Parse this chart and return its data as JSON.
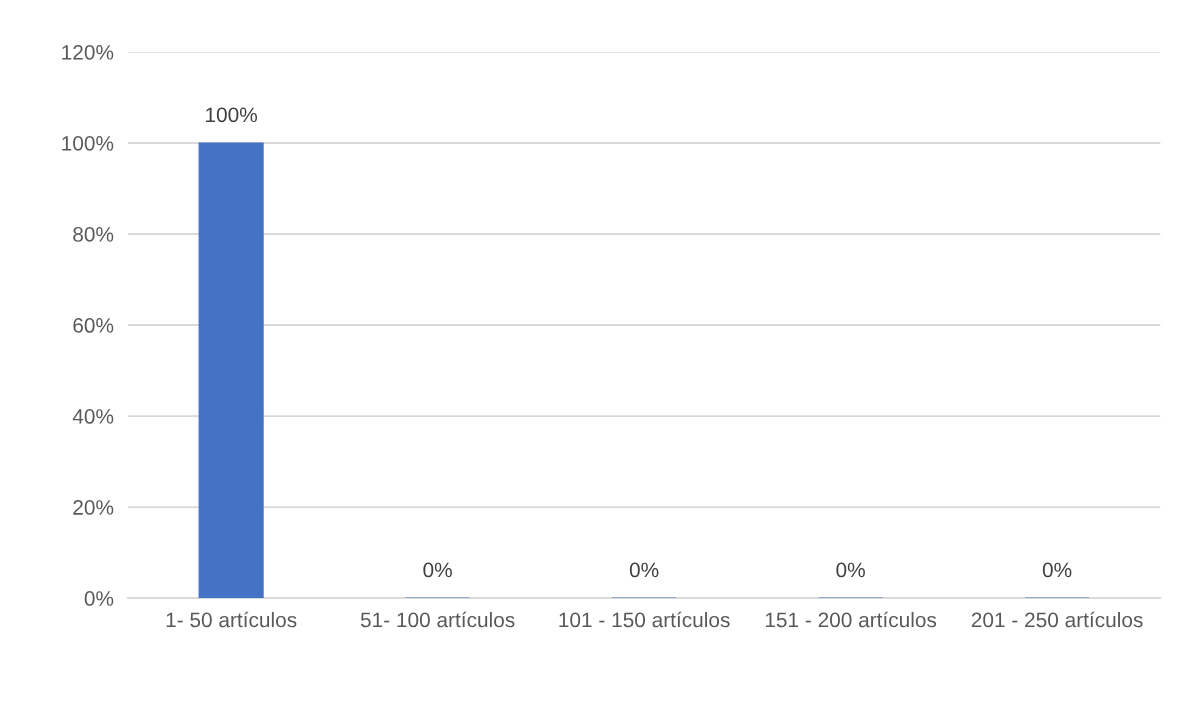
{
  "chart_data": {
    "type": "bar",
    "categories": [
      "1- 50 artículos",
      "51- 100 artículos",
      "101 - 150 artículos",
      "151 - 200 artículos",
      "201 - 250 artículos"
    ],
    "values": [
      100,
      0,
      0,
      0,
      0
    ],
    "value_labels": [
      "100%",
      "0%",
      "0%",
      "0%",
      "0%"
    ],
    "color": "#4472c4",
    "ylim": [
      0,
      120
    ],
    "yticks": [
      {
        "value": 0,
        "label": "0%"
      },
      {
        "value": 20,
        "label": "20%"
      },
      {
        "value": 40,
        "label": "40%"
      },
      {
        "value": 60,
        "label": "60%"
      },
      {
        "value": 80,
        "label": "80%"
      },
      {
        "value": 100,
        "label": "100%"
      },
      {
        "value": 120,
        "label": "120%"
      }
    ],
    "grid": "y"
  }
}
